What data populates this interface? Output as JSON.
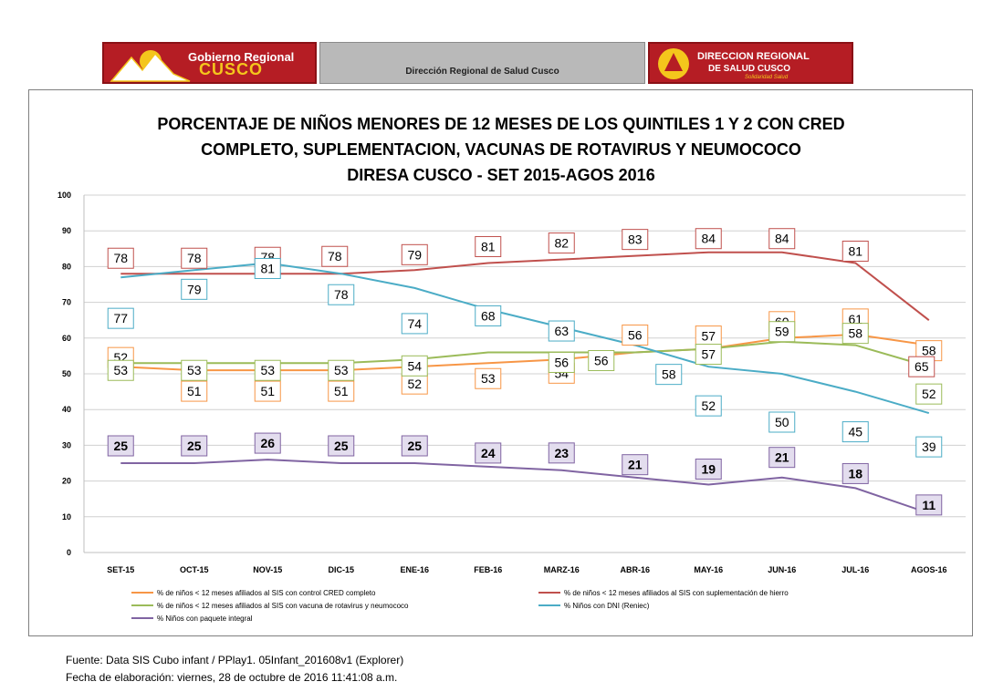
{
  "header": {
    "left_logo": {
      "line1": "Gobierno Regional",
      "line2": "CUSCO",
      "icon": "mountain-sun-logo"
    },
    "center_title": "Dirección Regional de Salud Cusco",
    "right_logo": {
      "line1": "DIRECCION REGIONAL",
      "line2": "DE SALUD CUSCO",
      "line3": "Solidaridad Salud",
      "icon": "health-emblem-logo"
    }
  },
  "chart_data": {
    "type": "line",
    "title": [
      "PORCENTAJE DE NIÑOS MENORES DE 12 MESES DE LOS QUINTILES 1 Y 2 CON CRED",
      "COMPLETO, SUPLEMENTACION, VACUNAS DE ROTAVIRUS Y NEUMOCOCO",
      "DIRESA CUSCO -  SET 2015-AGOS 2016"
    ],
    "categories": [
      "SET-15",
      "OCT-15",
      "NOV-15",
      "DIC-15",
      "ENE-16",
      "FEB-16",
      "MARZ-16",
      "ABR-16",
      "MAY-16",
      "JUN-16",
      "JUL-16",
      "AGOS-16"
    ],
    "ylim": [
      0,
      100
    ],
    "yticks": [
      0,
      10,
      20,
      30,
      40,
      50,
      60,
      70,
      80,
      90,
      100
    ],
    "grid": true,
    "legend_position": "bottom",
    "series": [
      {
        "name": "% de niños < 12 meses afiliados al SIS con control CRED completo",
        "color": "#f79646",
        "values": [
          52,
          51,
          51,
          51,
          52,
          53,
          54,
          56,
          57,
          60,
          61,
          58
        ],
        "labels": [
          "52",
          "51",
          "51",
          "51",
          "52",
          "53",
          "54",
          "56",
          "57",
          "60",
          "61",
          "58"
        ]
      },
      {
        "name": "% de niños < 12 meses afiliados al SIS con suplementación de hierro",
        "color": "#c0504d",
        "values": [
          78,
          78,
          78,
          78,
          79,
          81,
          82,
          83,
          84,
          84,
          81,
          65
        ],
        "labels": [
          "78",
          "78",
          "78",
          "78",
          "79",
          "81",
          "82",
          "83",
          "84",
          "84",
          "81",
          "65"
        ]
      },
      {
        "name": "% de niños < 12 meses afiliados al SIS con  vacuna de rotavirus y neumococo",
        "color": "#9bbb59",
        "values": [
          53,
          53,
          53,
          53,
          54,
          56,
          56,
          56,
          57,
          59,
          58,
          52
        ],
        "labels": [
          "53",
          "53",
          "53",
          "53",
          "54",
          "",
          "56",
          "56",
          "57",
          "59",
          "58",
          "52"
        ]
      },
      {
        "name": "% Niños con DNI (Reniec)",
        "color": "#4bacc6",
        "values": [
          77,
          79,
          81,
          78,
          74,
          68,
          63,
          58,
          52,
          50,
          45,
          39
        ],
        "labels": [
          "77",
          "79",
          "81",
          "78",
          "74",
          "68",
          "63",
          "58",
          "52",
          "50",
          "45",
          "39"
        ]
      },
      {
        "name": "% Niños con paquete integral",
        "color": "#8064a2",
        "values": [
          25,
          25,
          26,
          25,
          25,
          24,
          23,
          21,
          19,
          21,
          18,
          11
        ],
        "labels": [
          "25",
          "25",
          "26",
          "25",
          "25",
          "24",
          "23",
          "21",
          "19",
          "21",
          "18",
          "11"
        ]
      }
    ]
  },
  "footer": {
    "source": "Fuente: Data SIS Cubo infant / PPlay1. 05Infant_201608v1  (Explorer)",
    "date": "Fecha de elaboración: viernes, 28 de octubre de 2016 11:41:08  a.m."
  }
}
